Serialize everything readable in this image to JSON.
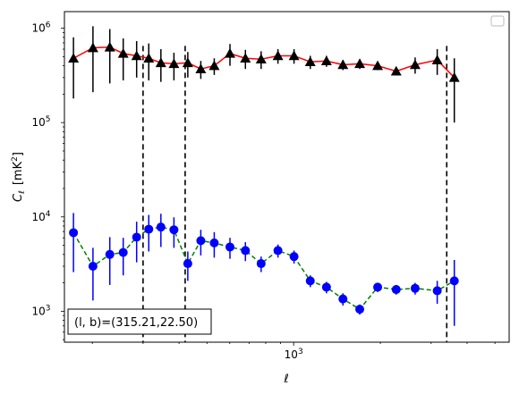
{
  "chart_data": {
    "type": "scatter",
    "title": "",
    "xlabel": "ℓ",
    "ylabel_main": "C",
    "ylabel_sub": "ℓ",
    "ylabel_unit": "[mK",
    "ylabel_unit_sup": "2",
    "ylabel_unit_close": "]",
    "x_scale": "log",
    "y_scale": "log",
    "xlim": [
      160,
      5600
    ],
    "ylim": [
      470,
      1500000
    ],
    "x_ticks": [
      {
        "value": 1000,
        "base": "10",
        "exp": "3"
      }
    ],
    "y_ticks": [
      {
        "value": 1000,
        "base": "10",
        "exp": "3"
      },
      {
        "value": 10000,
        "base": "10",
        "exp": "4"
      },
      {
        "value": 100000,
        "base": "10",
        "exp": "5"
      },
      {
        "value": 1000000,
        "base": "10",
        "exp": "6"
      }
    ],
    "grid": false,
    "legend_placement": "top-right",
    "annotation": "(l, b)=(315.21,22.50)",
    "vertical_lines_x": [
      300,
      420,
      3400
    ],
    "series": [
      {
        "marker": "triangle",
        "marker_color": "#000000",
        "errorbar_color": "#000000",
        "line_color": "#ff0000",
        "line_style": "solid",
        "points": [
          {
            "x": 172,
            "y": 480000,
            "ylo": 180000,
            "yhi": 800000
          },
          {
            "x": 201,
            "y": 620000,
            "ylo": 210000,
            "yhi": 1050000
          },
          {
            "x": 230,
            "y": 630000,
            "ylo": 260000,
            "yhi": 980000
          },
          {
            "x": 256,
            "y": 540000,
            "ylo": 280000,
            "yhi": 780000
          },
          {
            "x": 285,
            "y": 510000,
            "ylo": 300000,
            "yhi": 730000
          },
          {
            "x": 314,
            "y": 480000,
            "ylo": 280000,
            "yhi": 690000
          },
          {
            "x": 346,
            "y": 430000,
            "ylo": 270000,
            "yhi": 600000
          },
          {
            "x": 384,
            "y": 420000,
            "ylo": 280000,
            "yhi": 550000
          },
          {
            "x": 429,
            "y": 430000,
            "ylo": 300000,
            "yhi": 560000
          },
          {
            "x": 476,
            "y": 370000,
            "ylo": 290000,
            "yhi": 450000
          },
          {
            "x": 530,
            "y": 400000,
            "ylo": 320000,
            "yhi": 480000
          },
          {
            "x": 601,
            "y": 540000,
            "ylo": 400000,
            "yhi": 680000
          },
          {
            "x": 680,
            "y": 480000,
            "ylo": 370000,
            "yhi": 590000
          },
          {
            "x": 771,
            "y": 470000,
            "ylo": 370000,
            "yhi": 570000
          },
          {
            "x": 882,
            "y": 510000,
            "ylo": 420000,
            "yhi": 600000
          },
          {
            "x": 1003,
            "y": 510000,
            "ylo": 420000,
            "yhi": 600000
          },
          {
            "x": 1142,
            "y": 440000,
            "ylo": 370000,
            "yhi": 510000
          },
          {
            "x": 1300,
            "y": 450000,
            "ylo": 390000,
            "yhi": 510000
          },
          {
            "x": 1483,
            "y": 410000,
            "ylo": 360000,
            "yhi": 460000
          },
          {
            "x": 1696,
            "y": 420000,
            "ylo": 370000,
            "yhi": 470000
          },
          {
            "x": 1957,
            "y": 400000,
            "ylo": 360000,
            "yhi": 440000
          },
          {
            "x": 2270,
            "y": 350000,
            "ylo": 320000,
            "yhi": 380000
          },
          {
            "x": 2641,
            "y": 410000,
            "ylo": 330000,
            "yhi": 490000
          },
          {
            "x": 3151,
            "y": 460000,
            "ylo": 320000,
            "yhi": 600000
          },
          {
            "x": 3612,
            "y": 300000,
            "ylo": 100000,
            "yhi": 480000
          }
        ]
      },
      {
        "marker": "circle",
        "marker_color": "#0000ff",
        "errorbar_color": "#0000ff",
        "line_color": "#008000",
        "line_style": "dashed",
        "points": [
          {
            "x": 172,
            "y": 6800,
            "ylo": 2600,
            "yhi": 11000
          },
          {
            "x": 201,
            "y": 3000,
            "ylo": 1300,
            "yhi": 4700
          },
          {
            "x": 230,
            "y": 4000,
            "ylo": 1900,
            "yhi": 6100
          },
          {
            "x": 256,
            "y": 4200,
            "ylo": 2400,
            "yhi": 6000
          },
          {
            "x": 285,
            "y": 6100,
            "ylo": 3300,
            "yhi": 8900
          },
          {
            "x": 314,
            "y": 7400,
            "ylo": 4300,
            "yhi": 10500
          },
          {
            "x": 346,
            "y": 7800,
            "ylo": 4800,
            "yhi": 10800
          },
          {
            "x": 384,
            "y": 7300,
            "ylo": 4700,
            "yhi": 9900
          },
          {
            "x": 429,
            "y": 3200,
            "ylo": 2100,
            "yhi": 4300
          },
          {
            "x": 476,
            "y": 5600,
            "ylo": 3900,
            "yhi": 7300
          },
          {
            "x": 530,
            "y": 5300,
            "ylo": 3700,
            "yhi": 6900
          },
          {
            "x": 601,
            "y": 4800,
            "ylo": 3600,
            "yhi": 6000
          },
          {
            "x": 680,
            "y": 4400,
            "ylo": 3400,
            "yhi": 5400
          },
          {
            "x": 771,
            "y": 3200,
            "ylo": 2600,
            "yhi": 3800
          },
          {
            "x": 882,
            "y": 4400,
            "ylo": 3700,
            "yhi": 5100
          },
          {
            "x": 1003,
            "y": 3800,
            "ylo": 3200,
            "yhi": 4400
          },
          {
            "x": 1142,
            "y": 2100,
            "ylo": 1800,
            "yhi": 2400
          },
          {
            "x": 1300,
            "y": 1800,
            "ylo": 1550,
            "yhi": 2050
          },
          {
            "x": 1483,
            "y": 1350,
            "ylo": 1150,
            "yhi": 1550
          },
          {
            "x": 1696,
            "y": 1050,
            "ylo": 920,
            "yhi": 1180
          },
          {
            "x": 1957,
            "y": 1800,
            "ylo": 1600,
            "yhi": 2000
          },
          {
            "x": 2270,
            "y": 1700,
            "ylo": 1500,
            "yhi": 1900
          },
          {
            "x": 2641,
            "y": 1750,
            "ylo": 1500,
            "yhi": 2000
          },
          {
            "x": 3151,
            "y": 1650,
            "ylo": 1200,
            "yhi": 2100
          },
          {
            "x": 3612,
            "y": 2100,
            "ylo": 700,
            "yhi": 3500
          }
        ]
      }
    ]
  }
}
